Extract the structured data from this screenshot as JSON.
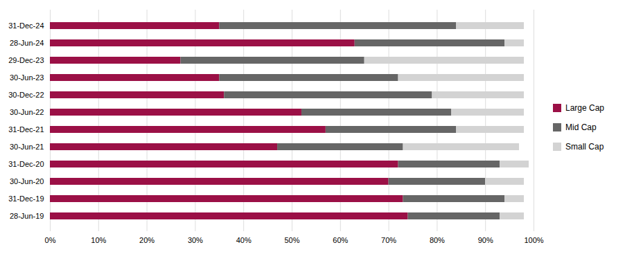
{
  "chart_data": {
    "type": "bar",
    "orientation": "horizontal",
    "stacked": true,
    "categories": [
      "31-Dec-24",
      "28-Jun-24",
      "29-Dec-23",
      "30-Jun-23",
      "30-Dec-22",
      "30-Jun-22",
      "31-Dec-21",
      "30-Jun-21",
      "31-Dec-20",
      "30-Jun-20",
      "31-Dec-19",
      "28-Jun-19"
    ],
    "series": [
      {
        "name": "Large Cap",
        "color": "#9B1046",
        "values": [
          35,
          63,
          27,
          35,
          36,
          52,
          57,
          47,
          72,
          70,
          73,
          74
        ]
      },
      {
        "name": "Mid Cap",
        "color": "#666666",
        "values": [
          49,
          31,
          38,
          37,
          43,
          31,
          27,
          26,
          21,
          20,
          21,
          19
        ]
      },
      {
        "name": "Small Cap",
        "color": "#D3D3D3",
        "values": [
          14,
          4,
          33,
          26,
          19,
          15,
          14,
          24,
          6,
          8,
          4,
          5
        ]
      }
    ],
    "xlim": [
      0,
      100
    ],
    "xticks": [
      {
        "value": 0,
        "label": "0%"
      },
      {
        "value": 10,
        "label": "10%"
      },
      {
        "value": 20,
        "label": "20%"
      },
      {
        "value": 30,
        "label": "30%"
      },
      {
        "value": 40,
        "label": "40%"
      },
      {
        "value": 50,
        "label": "50%"
      },
      {
        "value": 60,
        "label": "60%"
      },
      {
        "value": 70,
        "label": "70%"
      },
      {
        "value": 80,
        "label": "80%"
      },
      {
        "value": 90,
        "label": "90%"
      },
      {
        "value": 100,
        "label": "100%"
      }
    ],
    "grid": true,
    "legend": "right"
  }
}
